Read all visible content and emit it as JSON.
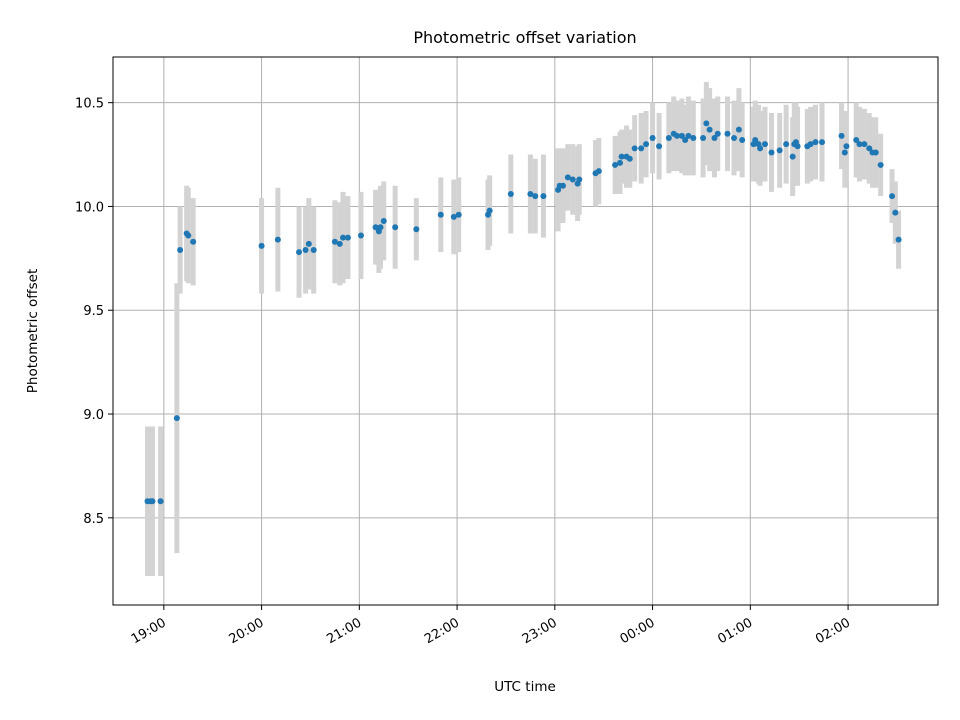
{
  "chart_data": {
    "type": "scatter",
    "title": "Photometric offset variation",
    "xlabel": "UTC time",
    "ylabel": "Photometric offset",
    "x_ticks": [
      "19:00",
      "20:00",
      "21:00",
      "22:00",
      "23:00",
      "00:00",
      "01:00",
      "02:00"
    ],
    "y_ticks": [
      "8.5",
      "9.0",
      "9.5",
      "10.0",
      "10.5"
    ],
    "x_tick_hours": [
      19,
      20,
      21,
      22,
      23,
      24,
      25,
      26
    ],
    "y_tick_values": [
      8.5,
      9.0,
      9.5,
      10.0,
      10.5
    ],
    "xlim_hours": [
      18.48,
      26.92
    ],
    "ylim": [
      8.08,
      10.72
    ],
    "grid": true,
    "colors": {
      "marker": "#1f77b4",
      "errorbar": "#d3d3d3",
      "grid": "#b0b0b0"
    },
    "series": [
      {
        "points": [
          {
            "t": "18:50",
            "y": 8.58,
            "err": 0.36
          },
          {
            "t": "18:52",
            "y": 8.58,
            "err": 0.36
          },
          {
            "t": "18:53",
            "y": 8.58,
            "err": 0.36
          },
          {
            "t": "18:58",
            "y": 8.58,
            "err": 0.36
          },
          {
            "t": "19:08",
            "y": 8.98,
            "err": 0.65
          },
          {
            "t": "19:10",
            "y": 9.79,
            "err": 0.21
          },
          {
            "t": "19:14",
            "y": 9.87,
            "err": 0.23
          },
          {
            "t": "19:15",
            "y": 9.86,
            "err": 0.23
          },
          {
            "t": "19:18",
            "y": 9.83,
            "err": 0.21
          },
          {
            "t": "20:00",
            "y": 9.81,
            "err": 0.23
          },
          {
            "t": "20:10",
            "y": 9.84,
            "err": 0.25
          },
          {
            "t": "20:23",
            "y": 9.78,
            "err": 0.22
          },
          {
            "t": "20:27",
            "y": 9.79,
            "err": 0.21
          },
          {
            "t": "20:29",
            "y": 9.82,
            "err": 0.22
          },
          {
            "t": "20:32",
            "y": 9.79,
            "err": 0.21
          },
          {
            "t": "20:45",
            "y": 9.83,
            "err": 0.2
          },
          {
            "t": "20:48",
            "y": 9.82,
            "err": 0.2
          },
          {
            "t": "20:50",
            "y": 9.85,
            "err": 0.22
          },
          {
            "t": "20:53",
            "y": 9.85,
            "err": 0.2
          },
          {
            "t": "21:01",
            "y": 9.86,
            "err": 0.21
          },
          {
            "t": "21:10",
            "y": 9.9,
            "err": 0.18
          },
          {
            "t": "21:12",
            "y": 9.88,
            "err": 0.2
          },
          {
            "t": "21:13",
            "y": 9.9,
            "err": 0.2
          },
          {
            "t": "21:15",
            "y": 9.93,
            "err": 0.19
          },
          {
            "t": "21:22",
            "y": 9.9,
            "err": 0.2
          },
          {
            "t": "21:35",
            "y": 9.89,
            "err": 0.15
          },
          {
            "t": "21:50",
            "y": 9.96,
            "err": 0.18
          },
          {
            "t": "21:58",
            "y": 9.95,
            "err": 0.18
          },
          {
            "t": "22:01",
            "y": 9.96,
            "err": 0.18
          },
          {
            "t": "22:19",
            "y": 9.96,
            "err": 0.17
          },
          {
            "t": "22:20",
            "y": 9.98,
            "err": 0.17
          },
          {
            "t": "22:33",
            "y": 10.06,
            "err": 0.19
          },
          {
            "t": "22:45",
            "y": 10.06,
            "err": 0.19
          },
          {
            "t": "22:48",
            "y": 10.05,
            "err": 0.18
          },
          {
            "t": "22:53",
            "y": 10.05,
            "err": 0.2
          },
          {
            "t": "23:02",
            "y": 10.08,
            "err": 0.2
          },
          {
            "t": "23:03",
            "y": 10.1,
            "err": 0.18
          },
          {
            "t": "23:05",
            "y": 10.1,
            "err": 0.18
          },
          {
            "t": "23:08",
            "y": 10.14,
            "err": 0.16
          },
          {
            "t": "23:11",
            "y": 10.13,
            "err": 0.17
          },
          {
            "t": "23:14",
            "y": 10.11,
            "err": 0.18
          },
          {
            "t": "23:15",
            "y": 10.13,
            "err": 0.17
          },
          {
            "t": "23:25",
            "y": 10.16,
            "err": 0.16
          },
          {
            "t": "23:27",
            "y": 10.17,
            "err": 0.16
          },
          {
            "t": "23:37",
            "y": 10.2,
            "err": 0.14
          },
          {
            "t": "23:40",
            "y": 10.21,
            "err": 0.15
          },
          {
            "t": "23:41",
            "y": 10.24,
            "err": 0.13
          },
          {
            "t": "23:44",
            "y": 10.24,
            "err": 0.15
          },
          {
            "t": "23:46",
            "y": 10.23,
            "err": 0.14
          },
          {
            "t": "23:49",
            "y": 10.28,
            "err": 0.16
          },
          {
            "t": "23:53",
            "y": 10.28,
            "err": 0.17
          },
          {
            "t": "23:56",
            "y": 10.3,
            "err": 0.16
          },
          {
            "t": "00:00",
            "y": 10.33,
            "err": 0.17
          },
          {
            "t": "00:04",
            "y": 10.29,
            "err": 0.16
          },
          {
            "t": "00:10",
            "y": 10.33,
            "err": 0.17
          },
          {
            "t": "00:13",
            "y": 10.35,
            "err": 0.18
          },
          {
            "t": "00:15",
            "y": 10.34,
            "err": 0.17
          },
          {
            "t": "00:18",
            "y": 10.34,
            "err": 0.18
          },
          {
            "t": "00:20",
            "y": 10.32,
            "err": 0.17
          },
          {
            "t": "00:22",
            "y": 10.34,
            "err": 0.19
          },
          {
            "t": "00:25",
            "y": 10.33,
            "err": 0.18
          },
          {
            "t": "00:31",
            "y": 10.33,
            "err": 0.19
          },
          {
            "t": "00:33",
            "y": 10.4,
            "err": 0.2
          },
          {
            "t": "00:35",
            "y": 10.37,
            "err": 0.2
          },
          {
            "t": "00:38",
            "y": 10.33,
            "err": 0.19
          },
          {
            "t": "00:40",
            "y": 10.35,
            "err": 0.18
          },
          {
            "t": "00:46",
            "y": 10.35,
            "err": 0.18
          },
          {
            "t": "00:50",
            "y": 10.33,
            "err": 0.18
          },
          {
            "t": "00:53",
            "y": 10.37,
            "err": 0.2
          },
          {
            "t": "00:55",
            "y": 10.32,
            "err": 0.18
          },
          {
            "t": "01:02",
            "y": 10.3,
            "err": 0.18
          },
          {
            "t": "01:03",
            "y": 10.32,
            "err": 0.19
          },
          {
            "t": "01:05",
            "y": 10.3,
            "err": 0.19
          },
          {
            "t": "01:06",
            "y": 10.28,
            "err": 0.18
          },
          {
            "t": "01:09",
            "y": 10.3,
            "err": 0.18
          },
          {
            "t": "01:13",
            "y": 10.26,
            "err": 0.19
          },
          {
            "t": "01:18",
            "y": 10.27,
            "err": 0.18
          },
          {
            "t": "01:22",
            "y": 10.3,
            "err": 0.19
          },
          {
            "t": "01:26",
            "y": 10.24,
            "err": 0.19
          },
          {
            "t": "01:27",
            "y": 10.3,
            "err": 0.2
          },
          {
            "t": "01:28",
            "y": 10.31,
            "err": 0.19
          },
          {
            "t": "01:29",
            "y": 10.29,
            "err": 0.19
          },
          {
            "t": "01:35",
            "y": 10.29,
            "err": 0.18
          },
          {
            "t": "01:37",
            "y": 10.3,
            "err": 0.18
          },
          {
            "t": "01:40",
            "y": 10.31,
            "err": 0.18
          },
          {
            "t": "01:44",
            "y": 10.31,
            "err": 0.19
          },
          {
            "t": "01:56",
            "y": 10.34,
            "err": 0.16
          },
          {
            "t": "01:58",
            "y": 10.26,
            "err": 0.17
          },
          {
            "t": "01:59",
            "y": 10.29,
            "err": 0.17
          },
          {
            "t": "02:05",
            "y": 10.32,
            "err": 0.18
          },
          {
            "t": "02:07",
            "y": 10.3,
            "err": 0.18
          },
          {
            "t": "02:10",
            "y": 10.3,
            "err": 0.17
          },
          {
            "t": "02:13",
            "y": 10.28,
            "err": 0.17
          },
          {
            "t": "02:15",
            "y": 10.26,
            "err": 0.17
          },
          {
            "t": "02:17",
            "y": 10.26,
            "err": 0.17
          },
          {
            "t": "02:20",
            "y": 10.2,
            "err": 0.15
          },
          {
            "t": "02:27",
            "y": 10.05,
            "err": 0.13
          },
          {
            "t": "02:29",
            "y": 9.97,
            "err": 0.15
          },
          {
            "t": "02:31",
            "y": 9.84,
            "err": 0.14
          }
        ]
      }
    ]
  }
}
